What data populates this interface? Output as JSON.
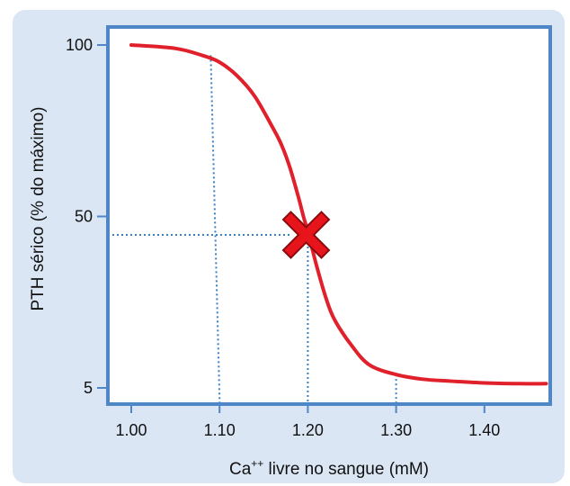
{
  "colors": {
    "panel_background": "#dbe6f4",
    "plot_background": "#ffffff",
    "plot_border": "#4f86c6",
    "curve": "#e0202a",
    "guide_lines": "#3b7fc4",
    "marker": "#e8141c",
    "marker_outline": "#8a0a0e"
  },
  "chart_data": {
    "type": "line",
    "title": "",
    "xlabel": "Ca++ livre no sangue (mM)",
    "xlabel_parts": {
      "base": "Ca",
      "superscript": "++",
      "rest": " livre no sangue (mM)"
    },
    "ylabel": "PTH sérico (% do máximo)",
    "x_ticks": [
      "1.00",
      "1.10",
      "1.20",
      "1.30",
      "1.40"
    ],
    "y_ticks": [
      "5",
      "50",
      "100"
    ],
    "xlim": [
      0.97,
      1.47
    ],
    "y_scale": "nonlinear (5, 50, 100 equally spaced)",
    "grid": false,
    "legend": "none",
    "series": [
      {
        "x": [
          1.0,
          1.05,
          1.08,
          1.1,
          1.12,
          1.14,
          1.16,
          1.17,
          1.18,
          1.19,
          1.195,
          1.2,
          1.21,
          1.22,
          1.23,
          1.25,
          1.27,
          1.3,
          1.33,
          1.36,
          1.4,
          1.44,
          1.47
        ],
        "y": [
          100,
          99,
          97,
          95,
          91,
          85,
          76,
          71,
          64,
          55,
          50,
          46,
          37,
          29,
          23,
          16,
          11,
          8.5,
          7.3,
          6.8,
          6.3,
          6.1,
          6.1
        ]
      }
    ],
    "guide_lines": [
      {
        "x": 1.09,
        "y": 97
      },
      {
        "x": 1.2,
        "y": 48
      },
      {
        "x": 1.3,
        "y": 8.5
      }
    ],
    "marker": {
      "shape": "x",
      "x": 1.195,
      "y": 48
    }
  }
}
